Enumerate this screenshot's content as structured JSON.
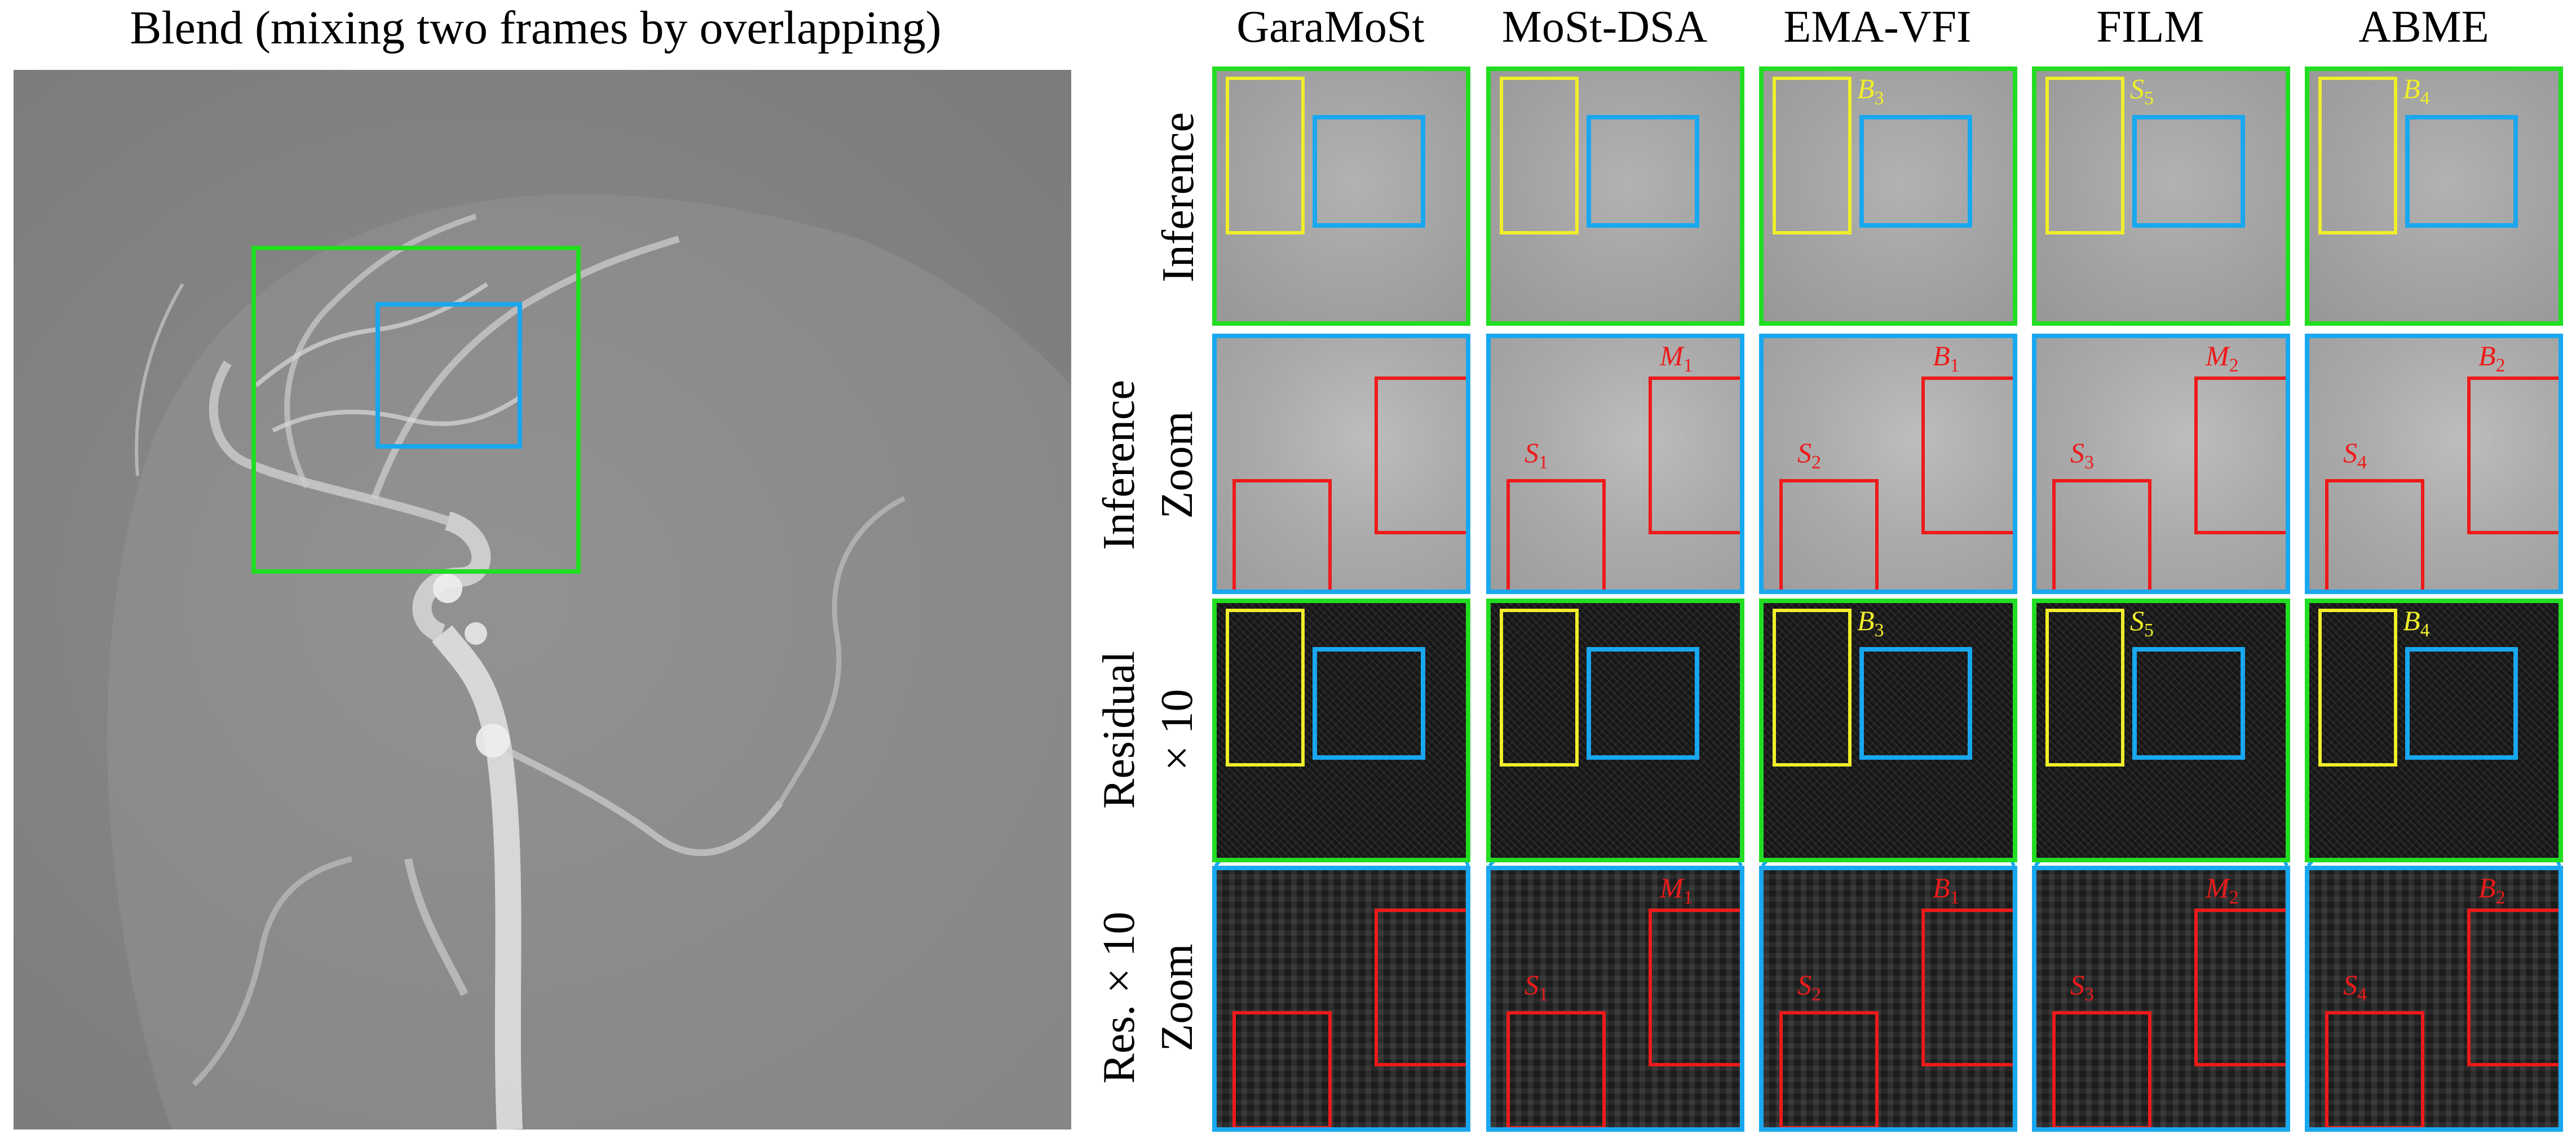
{
  "main_title": "Blend (mixing two frames by overlapping)",
  "columns": [
    "GaraMoSt",
    "MoSt-DSA",
    "EMA-VFI",
    "FILM",
    "ABME"
  ],
  "row_labels": [
    [
      "Inference"
    ],
    [
      "Inference",
      "Zoom"
    ],
    [
      "Residual",
      "× 10"
    ],
    [
      "Res. × 10",
      "Zoom"
    ]
  ],
  "markers": {
    "inference_yellow": [
      null,
      null,
      {
        "letter": "B",
        "sub": "3"
      },
      {
        "letter": "S",
        "sub": "5"
      },
      {
        "letter": "B",
        "sub": "4"
      }
    ],
    "zoom_red_right": [
      null,
      {
        "letter": "M",
        "sub": "1"
      },
      {
        "letter": "B",
        "sub": "1"
      },
      {
        "letter": "M",
        "sub": "2"
      },
      {
        "letter": "B",
        "sub": "2"
      }
    ],
    "zoom_red_left": [
      null,
      {
        "letter": "S",
        "sub": "1"
      },
      {
        "letter": "S",
        "sub": "2"
      },
      {
        "letter": "S",
        "sub": "3"
      },
      {
        "letter": "S",
        "sub": "4"
      }
    ],
    "residual_yellow": [
      null,
      null,
      {
        "letter": "B",
        "sub": "3"
      },
      {
        "letter": "S",
        "sub": "5"
      },
      {
        "letter": "B",
        "sub": "4"
      }
    ],
    "reszoom_red_right": [
      null,
      {
        "letter": "M",
        "sub": "1"
      },
      {
        "letter": "B",
        "sub": "1"
      },
      {
        "letter": "M",
        "sub": "2"
      },
      {
        "letter": "B",
        "sub": "2"
      }
    ],
    "reszoom_red_left": [
      null,
      {
        "letter": "S",
        "sub": "1"
      },
      {
        "letter": "S",
        "sub": "2"
      },
      {
        "letter": "S",
        "sub": "3"
      },
      {
        "letter": "S",
        "sub": "4"
      }
    ]
  },
  "colors": {
    "green": "#22dd22",
    "blue": "#19a7ef",
    "yellow": "#f0ee2a",
    "red": "#ee1a1a"
  }
}
